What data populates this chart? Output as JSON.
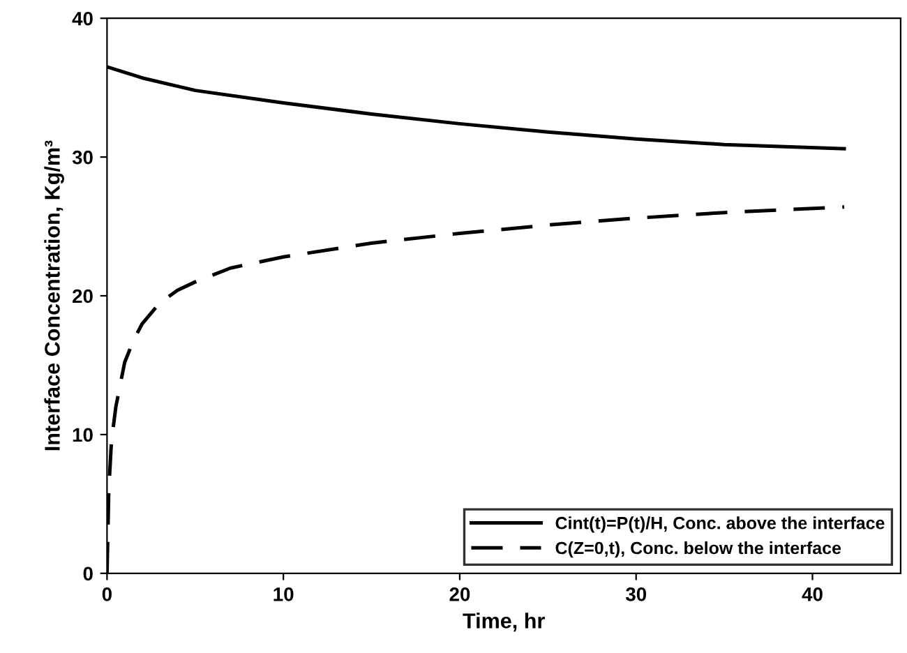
{
  "chart_data": {
    "type": "line",
    "xlabel": "Time, hr",
    "ylabel": "Interface Concentration, Kg/m³",
    "xlim": [
      0,
      45
    ],
    "ylim": [
      0,
      40
    ],
    "xticks": [
      0,
      10,
      20,
      30,
      40
    ],
    "yticks": [
      0,
      10,
      20,
      30,
      40
    ],
    "grid": false,
    "legend": "bottom right",
    "series": [
      {
        "name": "Cint(t)=P(t)/H, Conc. above the interface",
        "color": "#000000",
        "line_style": "solid",
        "x": [
          0,
          2,
          5,
          10,
          15,
          20,
          25,
          30,
          35,
          41.8
        ],
        "values": [
          36.5,
          35.7,
          34.8,
          33.9,
          33.1,
          32.4,
          31.8,
          31.3,
          30.9,
          30.6
        ]
      },
      {
        "name": "C(Z=0,t), Conc. below the interface",
        "color": "#000000",
        "line_style": "dashed",
        "x": [
          0,
          0.1,
          0.25,
          0.5,
          1,
          1.5,
          2,
          3,
          4,
          5,
          7,
          10,
          15,
          20,
          25,
          30,
          35,
          41.8
        ],
        "values": [
          0,
          6,
          9.5,
          12,
          15.2,
          16.8,
          18,
          19.5,
          20.4,
          21,
          22,
          22.8,
          23.8,
          24.5,
          25.1,
          25.6,
          26,
          26.4
        ]
      }
    ]
  }
}
